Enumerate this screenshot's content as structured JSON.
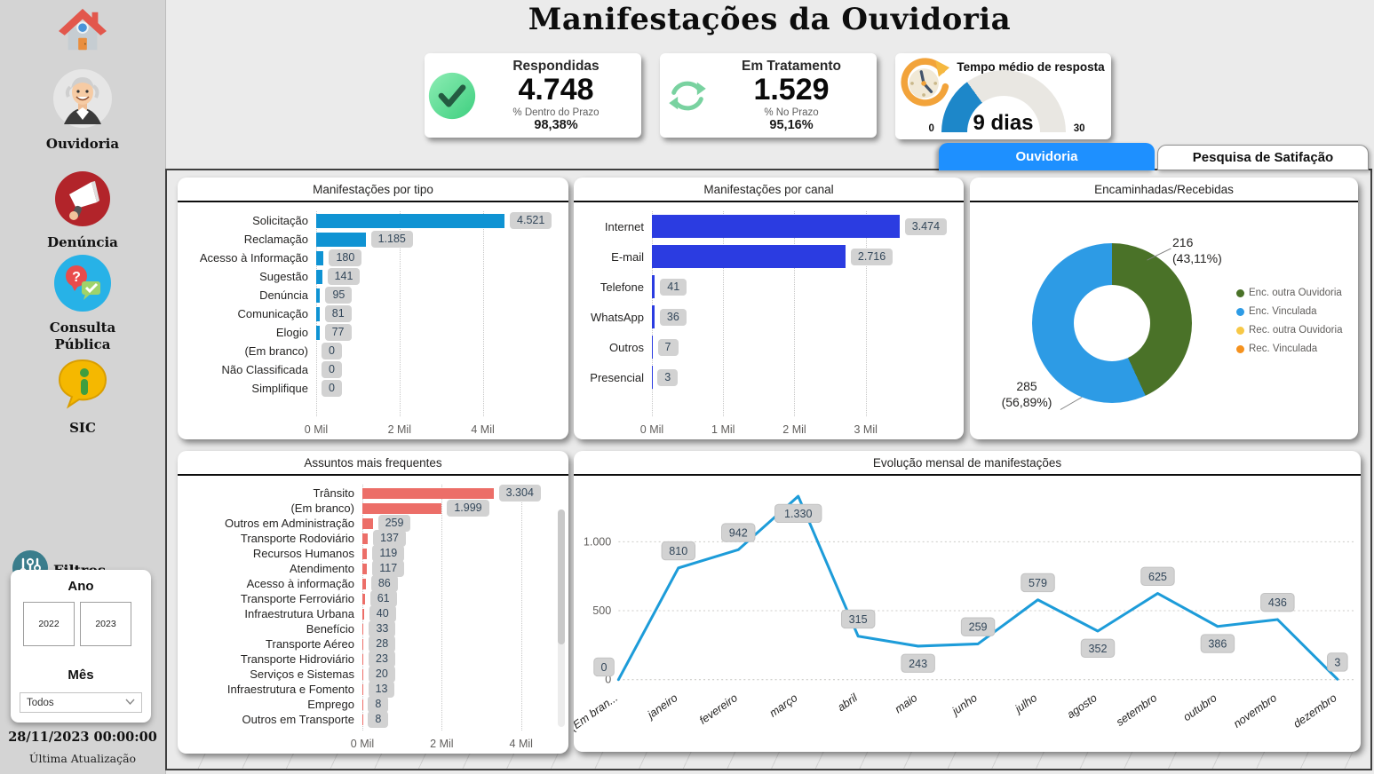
{
  "header": {
    "title": "Manifestações da Ouvidoria"
  },
  "sidebar": {
    "items": [
      {
        "id": "home",
        "icon": "home-icon",
        "label": ""
      },
      {
        "id": "ouvidoria",
        "icon": "ouvidoria-avatar-icon",
        "label": "Ouvidoria"
      },
      {
        "id": "denuncia",
        "icon": "megaphone-icon",
        "label": "Denúncia"
      },
      {
        "id": "consulta-publica",
        "icon": "consulta-publica-icon",
        "label": "Consulta Pública"
      },
      {
        "id": "sic",
        "icon": "sic-bubble-icon",
        "label": "SIC"
      }
    ],
    "filters": {
      "title": "Filtros",
      "icon": "sliders-icon",
      "year_label": "Ano",
      "years": [
        "2022",
        "2023"
      ],
      "month_label": "Mês",
      "month_value": "Todos"
    },
    "last_update_datetime": "28/11/2023 00:00:00",
    "last_update_label": "Última Atualização"
  },
  "kpis": {
    "respondidas": {
      "icon": "check-circle-icon",
      "title": "Respondidas",
      "value": "4.748",
      "sub_label": "% Dentro do Prazo",
      "sub_value": "98,38%"
    },
    "em_tratamento": {
      "icon": "refresh-arrows-icon",
      "title": "Em Tratamento",
      "value": "1.529",
      "sub_label": "% No Prazo",
      "sub_value": "95,16%"
    },
    "tempo_medio": {
      "icon": "clock-icon",
      "title": "Tempo médio de resposta",
      "min_label": "0",
      "max_label": "30",
      "value": 9,
      "max": 30,
      "value_label": "9 dias",
      "color": "#1d87c9"
    }
  },
  "tabs": [
    {
      "label": "Ouvidoria",
      "active": true
    },
    {
      "label": "Pesquisa de Satifação",
      "active": false
    }
  ],
  "colors": {
    "tab_active": "#1e90ff",
    "sidebar_bg": "#d4d4d4",
    "pill_bg": "#d2d2d2",
    "pill_text": "#33475a"
  },
  "chart_data": [
    {
      "id": "manifestacoes_por_tipo",
      "type": "bar",
      "orientation": "horizontal",
      "title": "Manifestações por tipo",
      "categories": [
        "Solicitação",
        "Reclamação",
        "Acesso à Informação",
        "Sugestão",
        "Denúncia",
        "Comunicação",
        "Elogio",
        "(Em branco)",
        "Não Classificada",
        "Simplifique"
      ],
      "values": [
        4521,
        1185,
        180,
        141,
        95,
        81,
        77,
        0,
        0,
        0
      ],
      "value_labels": [
        "4.521",
        "1.185",
        "180",
        "141",
        "95",
        "81",
        "77",
        "0",
        "0",
        "0"
      ],
      "x_ticks": [
        "0 Mil",
        "2 Mil",
        "4 Mil"
      ],
      "x_tick_values": [
        0,
        2000,
        4000
      ],
      "axis_max": 5800,
      "bar_color": "#0f93d3",
      "grid": true
    },
    {
      "id": "manifestacoes_por_canal",
      "type": "bar",
      "orientation": "horizontal",
      "title": "Manifestações por canal",
      "categories": [
        "Internet",
        "E-mail",
        "Telefone",
        "WhatsApp",
        "Outros",
        "Presencial"
      ],
      "values": [
        3474,
        2716,
        41,
        36,
        7,
        3
      ],
      "value_labels": [
        "3.474",
        "2.716",
        "41",
        "36",
        "7",
        "3"
      ],
      "x_ticks": [
        "0 Mil",
        "1 Mil",
        "2 Mil",
        "3 Mil"
      ],
      "x_tick_values": [
        0,
        1000,
        2000,
        3000
      ],
      "axis_max": 4200,
      "bar_color": "#2b3ce1",
      "grid": true
    },
    {
      "id": "encaminhadas_recebidas",
      "type": "pie",
      "title": "Encaminhadas/Recebidas",
      "slices": [
        {
          "label": "Enc. outra Ouvidoria",
          "value": 216,
          "pct": "43,11%",
          "callout_value": "216",
          "callout_pct": "(43,11%)",
          "color": "#4a7228"
        },
        {
          "label": "Enc. Vinculada",
          "value": 285,
          "pct": "56,89%",
          "callout_value": "285",
          "callout_pct": "(56,89%)",
          "color": "#2d9be5"
        }
      ],
      "legend": [
        {
          "label": "Enc. outra Ouvidoria",
          "color": "#4a7228"
        },
        {
          "label": "Enc. Vinculada",
          "color": "#2d9be5"
        },
        {
          "label": "Rec. outra Ouvidoria",
          "color": "#f7c846"
        },
        {
          "label": "Rec. Vinculada",
          "color": "#f5921e"
        }
      ],
      "legend_position": "right",
      "donut": true
    },
    {
      "id": "assuntos_mais_frequentes",
      "type": "bar",
      "orientation": "horizontal",
      "title": "Assuntos mais frequentes",
      "categories": [
        "Trânsito",
        "(Em branco)",
        "Outros em Administração",
        "Transporte Rodoviário",
        "Recursos Humanos",
        "Atendimento",
        "Acesso à informação",
        "Transporte Ferroviário",
        "Infraestrutura Urbana",
        "Benefício",
        "Transporte Aéreo",
        "Transporte Hidroviário",
        "Serviços e Sistemas",
        "Infraestrutura e Fomento",
        "Emprego",
        "Outros em Transporte"
      ],
      "values": [
        3304,
        1999,
        259,
        137,
        119,
        117,
        86,
        61,
        40,
        33,
        28,
        23,
        20,
        13,
        8,
        8
      ],
      "value_labels": [
        "3.304",
        "1.999",
        "259",
        "137",
        "119",
        "117",
        "86",
        "61",
        "40",
        "33",
        "28",
        "23",
        "20",
        "13",
        "8",
        "8"
      ],
      "x_ticks": [
        "0 Mil",
        "2 Mil",
        "4 Mil"
      ],
      "x_tick_values": [
        0,
        2000,
        4000
      ],
      "axis_max": 4700,
      "bar_color": "#ec6e68",
      "grid": true,
      "scrollbar": true
    },
    {
      "id": "evolucao_mensal",
      "type": "line",
      "title": "Evolução mensal de manifestações",
      "categories": [
        "(Em bran...",
        "janeiro",
        "fevereiro",
        "março",
        "abril",
        "maio",
        "junho",
        "julho",
        "agosto",
        "setembro",
        "outubro",
        "novembro",
        "dezembro"
      ],
      "values": [
        0,
        810,
        942,
        1330,
        315,
        243,
        259,
        579,
        352,
        625,
        386,
        436,
        3
      ],
      "value_labels": [
        "0",
        "810",
        "942",
        "1.330",
        "315",
        "243",
        "259",
        "579",
        "352",
        "625",
        "386",
        "436",
        "3"
      ],
      "label_positions": [
        "left",
        "above",
        "above",
        "below",
        "above",
        "below",
        "above",
        "above",
        "below",
        "above",
        "below",
        "above",
        "above"
      ],
      "y_ticks": [
        "0",
        "500",
        "1.000"
      ],
      "y_tick_values": [
        0,
        500,
        1000
      ],
      "y_max": 1400,
      "line_color": "#1d9cd9",
      "grid": true
    }
  ]
}
